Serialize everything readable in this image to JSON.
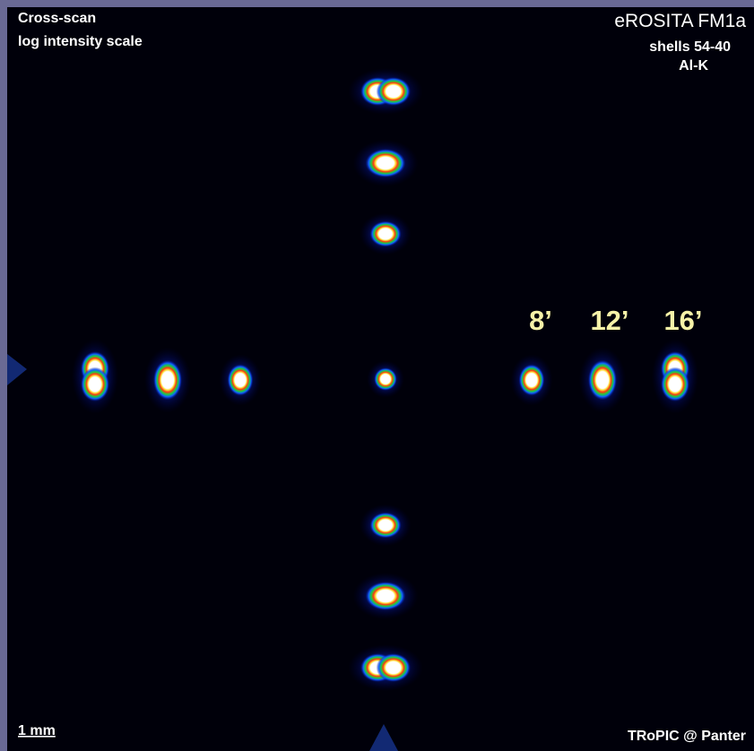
{
  "header": {
    "title": "Cross-scan",
    "subtitle": "log intensity scale",
    "instrument": "eROSITA FM1a",
    "shells": "shells 54-40",
    "line": "Al-K"
  },
  "offset_labels": [
    "8’",
    "12’",
    "16’"
  ],
  "footer": {
    "scale": "1 mm",
    "credit": "TRoPIC @ Panter"
  }
}
